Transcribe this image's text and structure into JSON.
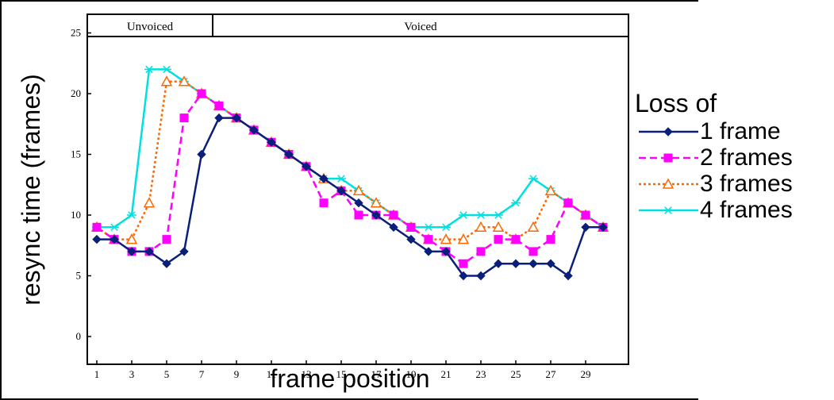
{
  "chart_data": {
    "type": "line",
    "xlabel": "frame position",
    "ylabel": "resync time (frames)",
    "ylim": [
      0,
      25
    ],
    "xlim": [
      1,
      30
    ],
    "x": [
      1,
      2,
      3,
      4,
      5,
      6,
      7,
      8,
      9,
      10,
      11,
      12,
      13,
      14,
      15,
      16,
      17,
      18,
      19,
      20,
      21,
      22,
      23,
      24,
      25,
      26,
      27,
      28,
      29,
      30
    ],
    "x_tick_labels": [
      "1",
      "3",
      "5",
      "7",
      "9",
      "11",
      "13",
      "15",
      "17",
      "19",
      "21",
      "23",
      "25",
      "27",
      "29"
    ],
    "y_tick_labels": [
      "0",
      "5",
      "10",
      "15",
      "20",
      "25"
    ],
    "grid": false,
    "bands": [
      {
        "label": "Unvoiced",
        "from": 1,
        "to": 8
      },
      {
        "label": "Voiced",
        "from": 8,
        "to": 30
      }
    ],
    "legend": {
      "title": "Loss of",
      "placement": "right"
    },
    "series": [
      {
        "name": "1 frame",
        "color": "#0a1f7a",
        "marker": "diamond",
        "dash": "solid",
        "values": [
          8,
          8,
          7,
          7,
          6,
          7,
          15,
          18,
          18,
          17,
          16,
          15,
          14,
          13,
          12,
          11,
          10,
          9,
          8,
          7,
          7,
          5,
          5,
          6,
          6,
          6,
          6,
          5,
          9,
          9
        ]
      },
      {
        "name": "2 frames",
        "color": "#ff00ff",
        "marker": "square",
        "dash": "dashed",
        "values": [
          9,
          8,
          7,
          7,
          8,
          18,
          20,
          19,
          18,
          17,
          16,
          15,
          14,
          11,
          12,
          10,
          10,
          10,
          9,
          8,
          7,
          6,
          7,
          8,
          8,
          7,
          8,
          11,
          10,
          9
        ]
      },
      {
        "name": "3 frames",
        "color": "#ff6600",
        "marker": "triangle",
        "dash": "dotted",
        "values": [
          9,
          8,
          8,
          11,
          21,
          21,
          20,
          19,
          18,
          17,
          16,
          15,
          14,
          13,
          12,
          12,
          11,
          10,
          9,
          8,
          8,
          8,
          9,
          9,
          8,
          9,
          12,
          11,
          10,
          9
        ]
      },
      {
        "name": "4 frames",
        "color": "#00e0e0",
        "marker": "star",
        "dash": "solid",
        "values": [
          9,
          9,
          10,
          22,
          22,
          21,
          20,
          19,
          18,
          17,
          16,
          15,
          14,
          13,
          13,
          12,
          11,
          10,
          9,
          9,
          9,
          10,
          10,
          10,
          11,
          13,
          12,
          11,
          10,
          9
        ]
      }
    ]
  }
}
